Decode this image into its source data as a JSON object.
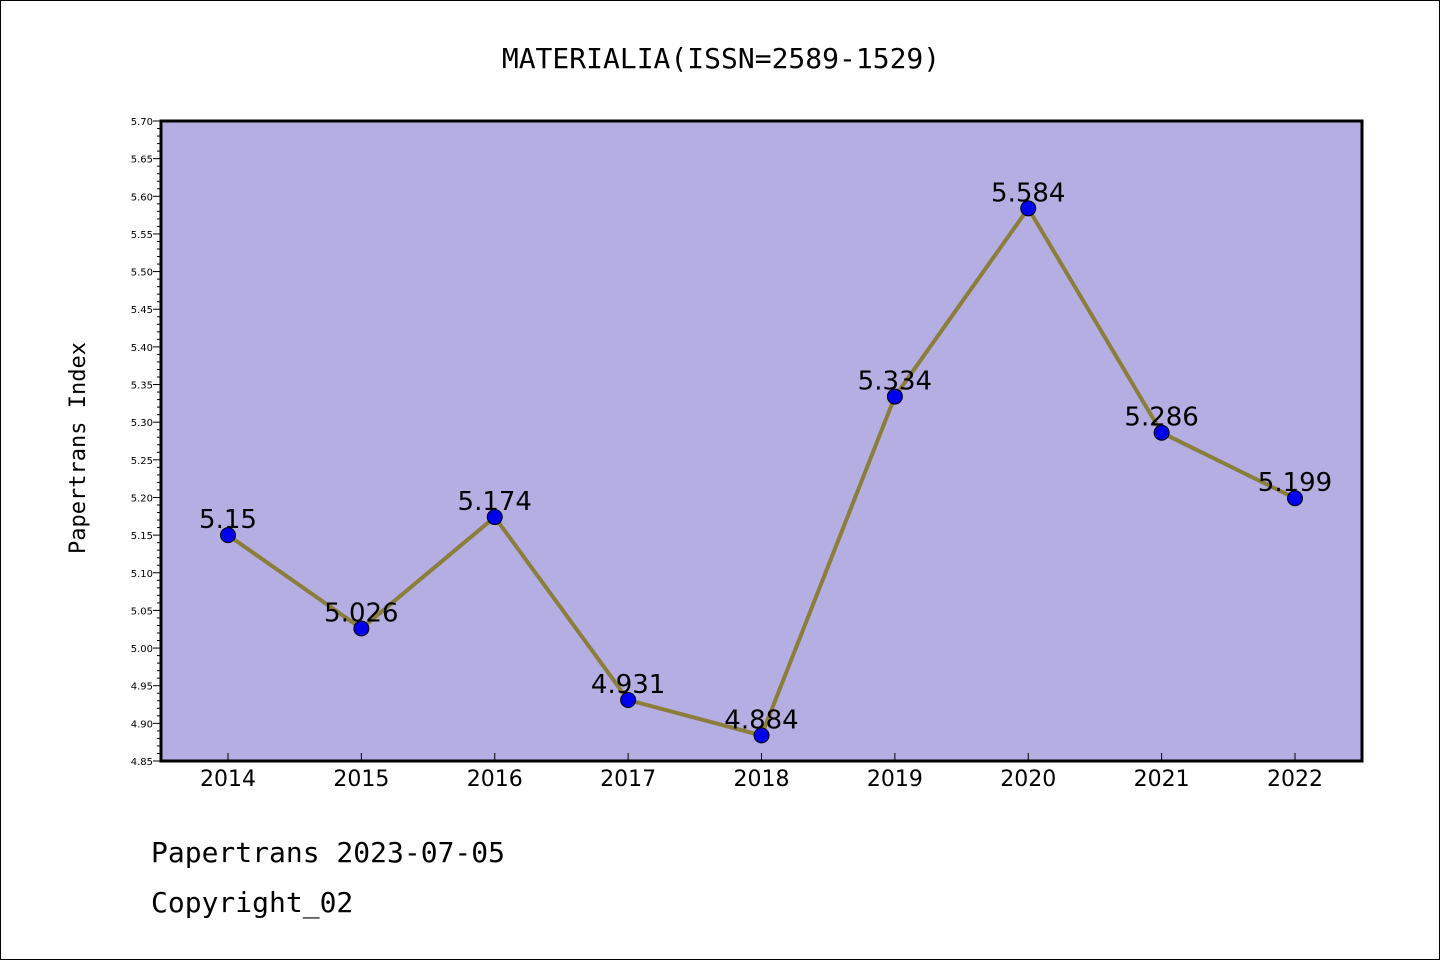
{
  "chart_data": {
    "type": "line",
    "title": "MATERIALIA(ISSN=2589-1529)",
    "xlabel": "",
    "ylabel": "Papertrans Index",
    "categories": [
      "2014",
      "2015",
      "2016",
      "2017",
      "2018",
      "2019",
      "2020",
      "2021",
      "2022"
    ],
    "series": [
      {
        "values": [
          5.15,
          5.026,
          5.174,
          4.931,
          4.884,
          5.334,
          5.584,
          5.286,
          5.199
        ],
        "labels": [
          "5.15",
          "5.026",
          "5.174",
          "4.931",
          "4.884",
          "5.334",
          "5.584",
          "5.286",
          "5.199"
        ]
      }
    ],
    "ylim": [
      4.85,
      5.7
    ],
    "yticks": [
      "4.85",
      "4.90",
      "4.95",
      "5.00",
      "5.05",
      "5.10",
      "5.15",
      "5.20",
      "5.25",
      "5.30",
      "5.35",
      "5.40",
      "5.45",
      "5.50",
      "5.55",
      "5.60",
      "5.65",
      "5.70"
    ],
    "grid": false,
    "colors": {
      "plot_background": "#b5aee2",
      "line": "#8b7d3a",
      "marker": "#0000ee"
    }
  },
  "footer": {
    "line1": "Papertrans 2023-07-05",
    "line2": "Copyright_02"
  }
}
